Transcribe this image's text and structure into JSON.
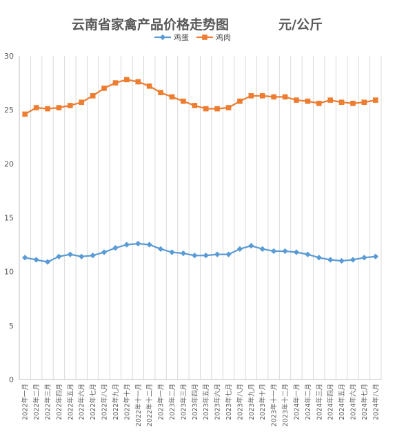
{
  "chart_data": {
    "type": "line",
    "title": "云南省家禽产品价格走势图",
    "unit": "元/公斤",
    "ylim": [
      0,
      30
    ],
    "yticks": [
      0,
      5,
      10,
      15,
      20,
      25,
      30
    ],
    "grid": "vertical",
    "legend_position": "top",
    "categories": [
      "2022年一月",
      "2022年二月",
      "2022年三月",
      "2022年四月",
      "2022年五月",
      "2022年六月",
      "2022年七月",
      "2022年八月",
      "2022年九月",
      "2022年十月",
      "2022年十一月",
      "2022年十二月",
      "2023年一月",
      "2023年二月",
      "2023年三月",
      "2023年四月",
      "2023年五月",
      "2023年六月",
      "2023年七月",
      "2023年八月",
      "2023年九月",
      "2023年十月",
      "2023年十一月",
      "2023年十二月",
      "2024年一月",
      "2024年二月",
      "2024年三月",
      "2024年四月",
      "2024年五月",
      "2024年六月",
      "2024年七月",
      "2024年八月"
    ],
    "series": [
      {
        "name": "鸡蛋",
        "color": "#5B9BD5",
        "marker": "diamond",
        "values": [
          11.3,
          11.1,
          10.9,
          11.4,
          11.6,
          11.4,
          11.5,
          11.8,
          12.2,
          12.5,
          12.6,
          12.5,
          12.1,
          11.8,
          11.7,
          11.5,
          11.5,
          11.6,
          11.6,
          12.1,
          12.4,
          12.1,
          11.9,
          11.9,
          11.8,
          11.6,
          11.3,
          11.1,
          11.0,
          11.1,
          11.3,
          11.4
        ]
      },
      {
        "name": "鸡肉",
        "color": "#ED7D31",
        "marker": "square",
        "values": [
          24.6,
          25.2,
          25.1,
          25.2,
          25.4,
          25.7,
          26.3,
          27.0,
          27.5,
          27.8,
          27.6,
          27.2,
          26.6,
          26.2,
          25.8,
          25.4,
          25.1,
          25.1,
          25.2,
          25.8,
          26.3,
          26.3,
          26.2,
          26.2,
          25.9,
          25.8,
          25.6,
          25.9,
          25.7,
          25.6,
          25.7,
          25.9
        ]
      }
    ]
  }
}
